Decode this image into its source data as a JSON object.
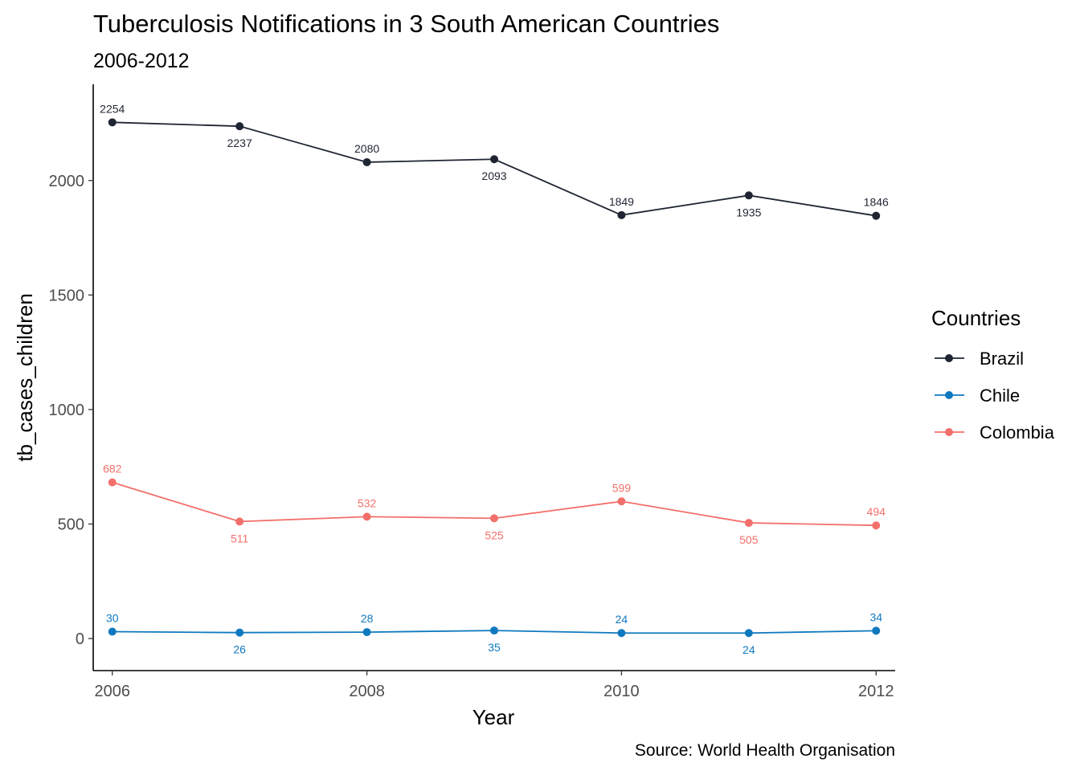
{
  "chart_data": {
    "type": "line",
    "title": "Tuberculosis Notifications in 3 South American Countries",
    "subtitle": "2006-2012",
    "xlabel": "Year",
    "ylabel": "tb_cases_children",
    "caption": "Source: World Health Organisation",
    "x": [
      2006,
      2007,
      2008,
      2009,
      2010,
      2011,
      2012
    ],
    "xlim": [
      2005.85,
      2012.15
    ],
    "ylim": [
      -140,
      2420
    ],
    "x_ticks": [
      2006,
      2008,
      2010,
      2012
    ],
    "x_tick_labels": [
      "2006",
      "2008",
      "2010",
      "2012"
    ],
    "y_ticks": [
      0,
      500,
      1000,
      1500,
      2000
    ],
    "y_tick_labels": [
      "0",
      "500",
      "1000",
      "1500",
      "2000"
    ],
    "grid": false,
    "legend": {
      "title": "Countries",
      "position": "right"
    },
    "series": [
      {
        "name": "Brazil",
        "color": "#1f2533",
        "values": [
          2254,
          2237,
          2080,
          2093,
          1849,
          1935,
          1846
        ],
        "labels": [
          "2254",
          "2237",
          "2080",
          "2093",
          "1849",
          "1935",
          "1846"
        ]
      },
      {
        "name": "Chile",
        "color": "#0f79bf",
        "values": [
          30,
          26,
          28,
          35,
          24,
          24,
          34
        ],
        "labels": [
          "30",
          "26",
          "28",
          "35",
          "24",
          "24",
          "34"
        ]
      },
      {
        "name": "Colombia",
        "color": "#f2706b",
        "values": [
          682,
          511,
          532,
          525,
          599,
          505,
          494
        ],
        "labels": [
          "682",
          "511",
          "532",
          "525",
          "599",
          "505",
          "494"
        ]
      }
    ]
  }
}
